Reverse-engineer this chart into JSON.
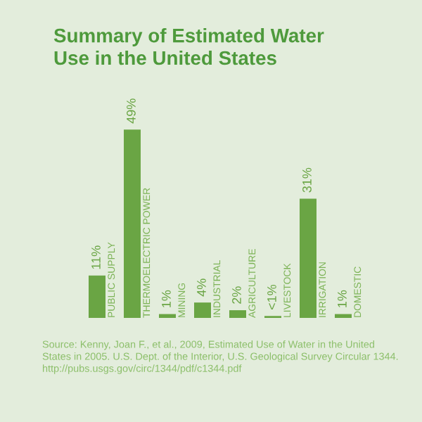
{
  "chart_data": {
    "type": "bar",
    "title": "Summary of Estimated Water\nUse in the United States",
    "categories": [
      "PUBLIC SUPPLY",
      "THERMOELECTRIC POWER",
      "MINING",
      "INDUSTRIAL",
      "AGRICULTURE",
      "LIVESTOCK",
      "IRRIGATION",
      "DOMESTIC"
    ],
    "values": [
      11,
      49,
      1,
      4,
      2,
      0.5,
      31,
      1
    ],
    "value_labels": [
      "11%",
      "49%",
      "1%",
      "4%",
      "2%",
      "<1%",
      "31%",
      "1%"
    ],
    "color": "#6aa544",
    "annotations": [
      "Source: Kenny, Joan F., et al., 2009, Estimated Use of Water in the United\nStates in 2005. U.S. Dept. of the Interior, U.S. Geological Survey Circular 1344.\nhttp://pubs.usgs.gov/circ/1344/pdf/c1344.pdf"
    ]
  }
}
